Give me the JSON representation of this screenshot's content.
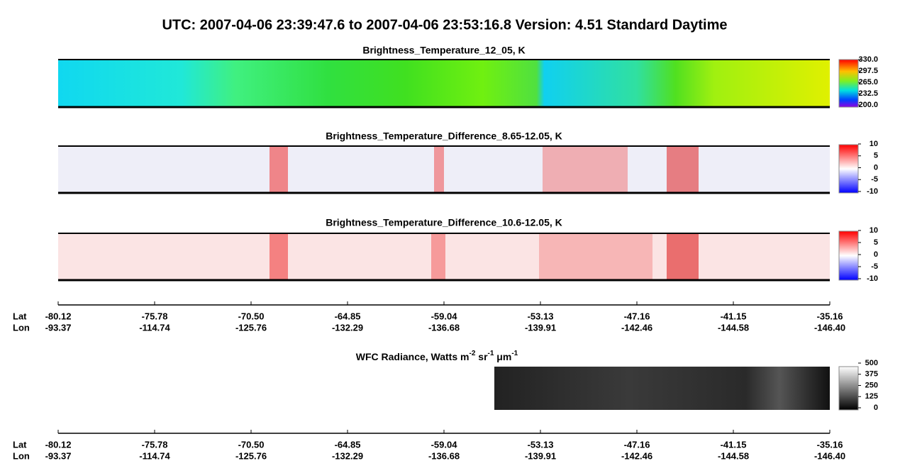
{
  "title": "UTC:  2007-04-06   23:39:47.6  to  2007-04-06   23:53:16.8    Version: 4.51  Standard Daytime",
  "panels": [
    {
      "title": "Brightness_Temperature_12_05, K",
      "colorbar_ticks": [
        "330.0",
        "297.5",
        "265.0",
        "232.5",
        "200.0"
      ]
    },
    {
      "title": "Brightness_Temperature_Difference_8.65-12.05, K",
      "colorbar_ticks": [
        "10",
        "5",
        "0",
        "-5",
        "-10"
      ]
    },
    {
      "title": "Brightness_Temperature_Difference_10.6-12.05, K",
      "colorbar_ticks": [
        "10",
        "5",
        "0",
        "-5",
        "-10"
      ]
    }
  ],
  "wfc": {
    "title_parts": [
      "WFC Radiance, Watts m",
      "-2",
      " sr",
      "-1",
      " μm",
      "-1"
    ],
    "colorbar_ticks": [
      "500",
      "375",
      "250",
      "125",
      "0"
    ]
  },
  "axes": [
    {
      "lat_label": "Lat",
      "lon_label": "Lon",
      "lat": [
        "-80.12",
        "-75.78",
        "-70.50",
        "-64.85",
        "-59.04",
        "-53.13",
        "-47.16",
        "-41.15",
        "-35.16"
      ],
      "lon": [
        "-93.37",
        "-114.74",
        "-125.76",
        "-132.29",
        "-136.68",
        "-139.91",
        "-142.46",
        "-144.58",
        "-146.40"
      ]
    },
    {
      "lat_label": "Lat",
      "lon_label": "Lon",
      "lat": [
        "-80.12",
        "-75.78",
        "-70.50",
        "-64.85",
        "-59.04",
        "-53.13",
        "-47.16",
        "-41.15",
        "-35.16"
      ],
      "lon": [
        "-93.37",
        "-114.74",
        "-125.76",
        "-132.29",
        "-136.68",
        "-139.91",
        "-142.46",
        "-144.58",
        "-146.40"
      ]
    }
  ]
}
